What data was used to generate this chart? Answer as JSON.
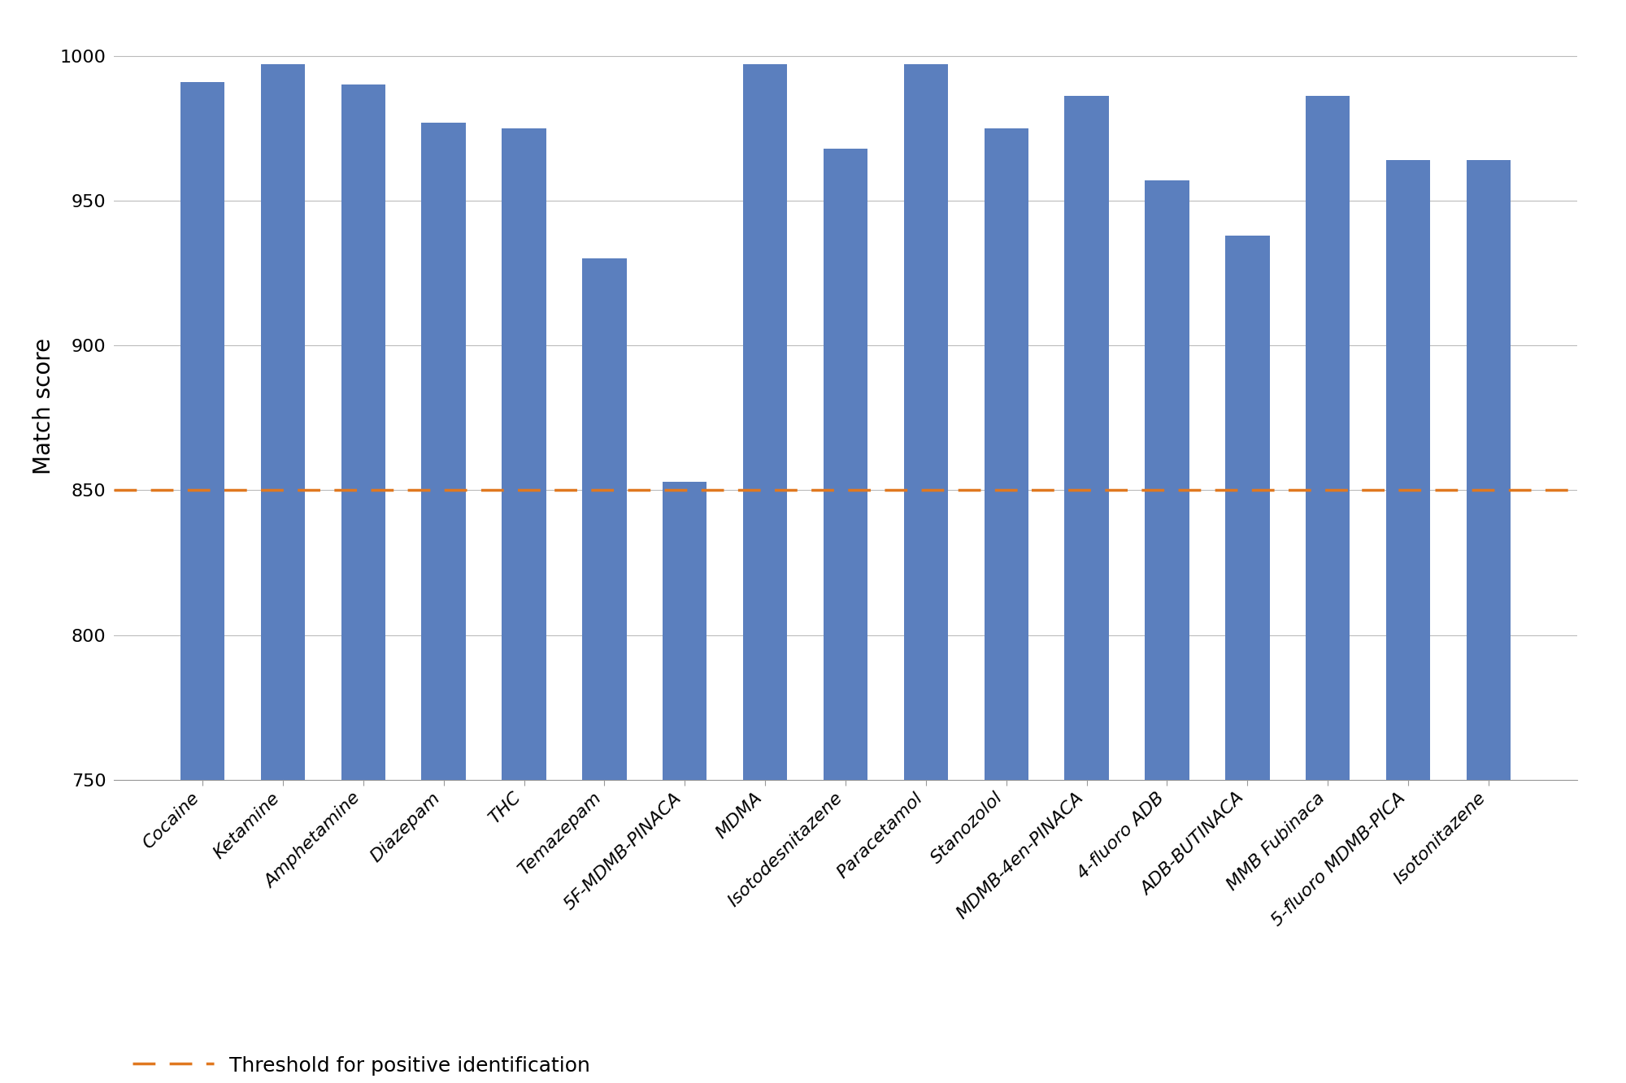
{
  "categories": [
    "Cocaine",
    "Ketamine",
    "Amphetamine",
    "Diazepam",
    "THC",
    "Temazepam",
    "5F-MDMB-PINACA",
    "MDMA",
    "Isotodesnitazene",
    "Paracetamol",
    "Stanozolol",
    "MDMB-4en-PINACA",
    "4-fluoro ADB",
    "ADB-BUTINACA",
    "MMB Fubinaca",
    "5-fluoro MDMB-PICA",
    "Isotonitazene"
  ],
  "values": [
    991,
    997,
    990,
    977,
    975,
    930,
    853,
    997,
    968,
    997,
    975,
    986,
    957,
    938,
    986,
    964,
    964
  ],
  "bar_color": "#5b7fbe",
  "threshold": 850,
  "threshold_color": "#e07820",
  "threshold_label": "Threshold for positive identification",
  "ylabel": "Match score",
  "ylim_min": 750,
  "ylim_max": 1008,
  "yticks": [
    750,
    800,
    850,
    900,
    950,
    1000
  ],
  "background_color": "#ffffff",
  "grid_color": "#bbbbbb",
  "ylabel_fontsize": 20,
  "tick_fontsize": 16,
  "xtick_fontsize": 16,
  "legend_fontsize": 18,
  "bar_width": 0.55
}
